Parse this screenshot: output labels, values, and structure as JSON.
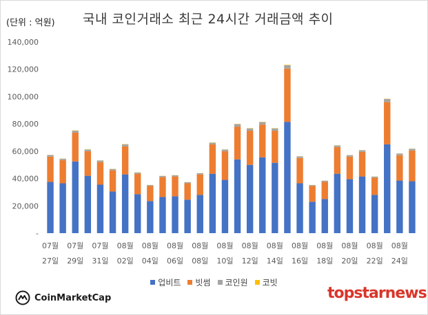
{
  "header": {
    "unit_label": "(단위 : 억원)",
    "title": "국내 코인거래소 최근 24시간 거래금액 추이"
  },
  "branding": {
    "left_logo_text": "CoinMarketCap",
    "right_logo_text": "topstarnews"
  },
  "colors": {
    "upbit": "#4472c4",
    "bithumb": "#ed7d31",
    "coinone": "#a5a5a5",
    "korbit": "#ffc000",
    "axis_text": "#595959",
    "brand_red": "#d9352a"
  },
  "chart_data": {
    "type": "bar",
    "stacked": true,
    "ylim": [
      0,
      140000
    ],
    "yticks": [
      0,
      20000,
      40000,
      60000,
      80000,
      100000,
      120000,
      140000
    ],
    "ytick_labels": [
      "-",
      "20,000",
      "40,000",
      "60,000",
      "80,000",
      "100,000",
      "120,000",
      "140,000"
    ],
    "grid": false,
    "legend_position": "bottom",
    "categories": [
      "07-27",
      "07-28",
      "07-29",
      "07-30",
      "07-31",
      "08-01",
      "08-02",
      "08-03",
      "08-04",
      "08-05",
      "08-06",
      "08-07",
      "08-08",
      "08-09",
      "08-10",
      "08-11",
      "08-12",
      "08-13",
      "08-14",
      "08-15",
      "08-16",
      "08-17",
      "08-18",
      "08-19",
      "08-20",
      "08-21",
      "08-22",
      "08-23",
      "08-24",
      "08-25"
    ],
    "x_tick_labels": [
      {
        "month": "07월",
        "day": "27일"
      },
      {
        "month": "07월",
        "day": "29일"
      },
      {
        "month": "07월",
        "day": "31일"
      },
      {
        "month": "08월",
        "day": "02일"
      },
      {
        "month": "08월",
        "day": "04일"
      },
      {
        "month": "08월",
        "day": "06일"
      },
      {
        "month": "08월",
        "day": "08일"
      },
      {
        "month": "08월",
        "day": "10일"
      },
      {
        "month": "08월",
        "day": "12일"
      },
      {
        "month": "08월",
        "day": "14일"
      },
      {
        "month": "08월",
        "day": "16일"
      },
      {
        "month": "08월",
        "day": "18일"
      },
      {
        "month": "08월",
        "day": "20일"
      },
      {
        "month": "08월",
        "day": "22일"
      },
      {
        "month": "08월",
        "day": "24일"
      }
    ],
    "series": [
      {
        "name": "업비트",
        "color_key": "upbit",
        "values": [
          37500,
          36500,
          52500,
          42000,
          35500,
          30500,
          43000,
          28500,
          23500,
          26500,
          27000,
          24500,
          28000,
          43500,
          39000,
          54000,
          50000,
          55500,
          51500,
          81500,
          36500,
          23000,
          25000,
          43500,
          39500,
          41500,
          28000,
          65000,
          38500,
          38000
        ]
      },
      {
        "name": "빗썸",
        "color_key": "bithumb",
        "values": [
          18500,
          17000,
          21000,
          18000,
          16500,
          15500,
          20500,
          15000,
          11000,
          14500,
          14500,
          12000,
          15000,
          21500,
          21000,
          24000,
          25000,
          24000,
          23500,
          39000,
          18500,
          11500,
          12500,
          19500,
          16500,
          18000,
          12500,
          31000,
          18500,
          22500
        ]
      },
      {
        "name": "코인원",
        "color_key": "coinone",
        "values": [
          1200,
          1000,
          1500,
          1300,
          1200,
          1000,
          1500,
          900,
          700,
          900,
          900,
          800,
          900,
          1200,
          1200,
          1800,
          1700,
          1800,
          1700,
          2500,
          1200,
          700,
          900,
          1200,
          1100,
          1200,
          900,
          2200,
          1300,
          1300
        ]
      },
      {
        "name": "코빗",
        "color_key": "korbit",
        "values": [
          100,
          100,
          200,
          100,
          100,
          100,
          200,
          100,
          100,
          100,
          100,
          100,
          100,
          200,
          100,
          200,
          200,
          200,
          200,
          300,
          100,
          100,
          100,
          100,
          100,
          100,
          100,
          200,
          100,
          100
        ]
      }
    ]
  }
}
